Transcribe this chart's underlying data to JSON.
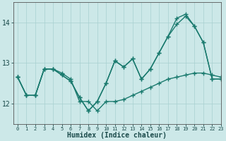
{
  "xlabel": "Humidex (Indice chaleur)",
  "x": [
    0,
    1,
    2,
    3,
    4,
    5,
    6,
    7,
    8,
    9,
    10,
    11,
    12,
    13,
    14,
    15,
    16,
    17,
    18,
    19,
    20,
    21,
    22,
    23
  ],
  "line1": [
    12.65,
    12.2,
    12.2,
    12.85,
    12.85,
    12.75,
    12.6,
    12.05,
    12.05,
    11.82,
    12.05,
    12.05,
    12.1,
    12.2,
    12.3,
    12.4,
    12.5,
    12.6,
    12.65,
    12.7,
    12.75,
    12.75,
    12.7,
    12.65
  ],
  "line2": [
    12.65,
    12.2,
    12.2,
    12.85,
    12.85,
    12.7,
    12.55,
    12.15,
    11.82,
    12.05,
    12.5,
    13.05,
    12.9,
    13.1,
    12.6,
    12.85,
    13.25,
    13.65,
    13.95,
    14.15,
    13.9,
    13.5,
    12.6,
    12.6
  ],
  "line3": [
    12.65,
    12.2,
    12.2,
    12.85,
    12.85,
    12.7,
    12.55,
    12.15,
    11.82,
    12.05,
    12.5,
    13.05,
    12.9,
    13.1,
    12.6,
    12.85,
    13.25,
    13.65,
    14.1,
    14.2,
    13.9,
    13.5,
    12.6,
    12.6
  ],
  "ylim": [
    11.5,
    14.5
  ],
  "xlim": [
    -0.5,
    23
  ],
  "yticks": [
    12,
    13,
    14
  ],
  "xticks": [
    0,
    1,
    2,
    3,
    4,
    5,
    6,
    7,
    8,
    9,
    10,
    11,
    12,
    13,
    14,
    15,
    16,
    17,
    18,
    19,
    20,
    21,
    22,
    23
  ],
  "line_color": "#1a7a6e",
  "bg_color": "#cce8e8",
  "grid_color": "#a8d0d0",
  "marker": "+",
  "marker_size": 4,
  "line_width": 1.0
}
